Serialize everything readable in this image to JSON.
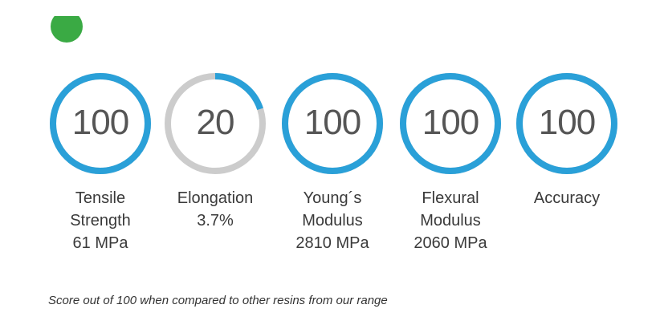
{
  "accent_color": "#2aa0d8",
  "track_color": "#cccccc",
  "status_color": "#3aaa44",
  "metrics": [
    {
      "value": "100",
      "score": 100,
      "lines": [
        "Tensile",
        "Strength",
        "61 MPa"
      ]
    },
    {
      "value": "20",
      "score": 20,
      "lines": [
        "Elongation",
        "3.7%"
      ]
    },
    {
      "value": "100",
      "score": 100,
      "lines": [
        "Young´s",
        "Modulus",
        "2810 MPa"
      ]
    },
    {
      "value": "100",
      "score": 100,
      "lines": [
        "Flexural",
        "Modulus",
        "2060 MPa"
      ]
    },
    {
      "value": "100",
      "score": 100,
      "lines": [
        "Accuracy"
      ]
    }
  ],
  "footnote": "Score out of 100 when compared to other resins from our range"
}
